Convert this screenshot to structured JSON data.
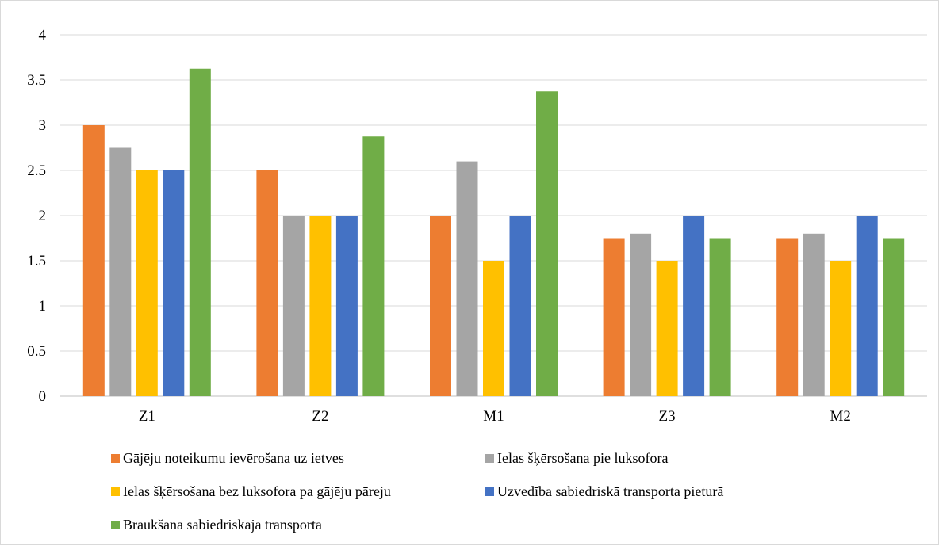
{
  "chart_data": {
    "type": "bar",
    "title": "",
    "xlabel": "",
    "ylabel": "",
    "categories": [
      "Z1",
      "Z2",
      "M1",
      "Z3",
      "M2"
    ],
    "ylim": [
      0,
      4
    ],
    "yticks": [
      "0",
      "0.5",
      "1",
      "1.5",
      "2",
      "2.5",
      "3",
      "3.5",
      "4"
    ],
    "grid": true,
    "legend_position": "bottom",
    "series": [
      {
        "name": "Gājēju noteikumu ievērošana uz ietves",
        "color": "#ED7D31",
        "values": [
          3,
          2.5,
          2,
          1.75,
          1.75
        ]
      },
      {
        "name": "Ielas šķērsošana pie luksofora",
        "color": "#A5A5A5",
        "values": [
          2.75,
          2,
          2.6,
          1.8,
          1.8
        ]
      },
      {
        "name": "Ielas šķērsošana bez luksofora pa gājēju pāreju",
        "color": "#FFC000",
        "values": [
          2.5,
          2,
          1.5,
          1.5,
          1.5
        ]
      },
      {
        "name": "Uzvedība sabiedriskā transporta pieturā",
        "color": "#4472C4",
        "values": [
          2.5,
          2,
          2,
          2,
          2
        ]
      },
      {
        "name": "Braukšana sabiedriskajā transportā",
        "color": "#70AD47",
        "values": [
          3.625,
          2.875,
          3.375,
          1.75,
          1.75
        ]
      }
    ]
  }
}
